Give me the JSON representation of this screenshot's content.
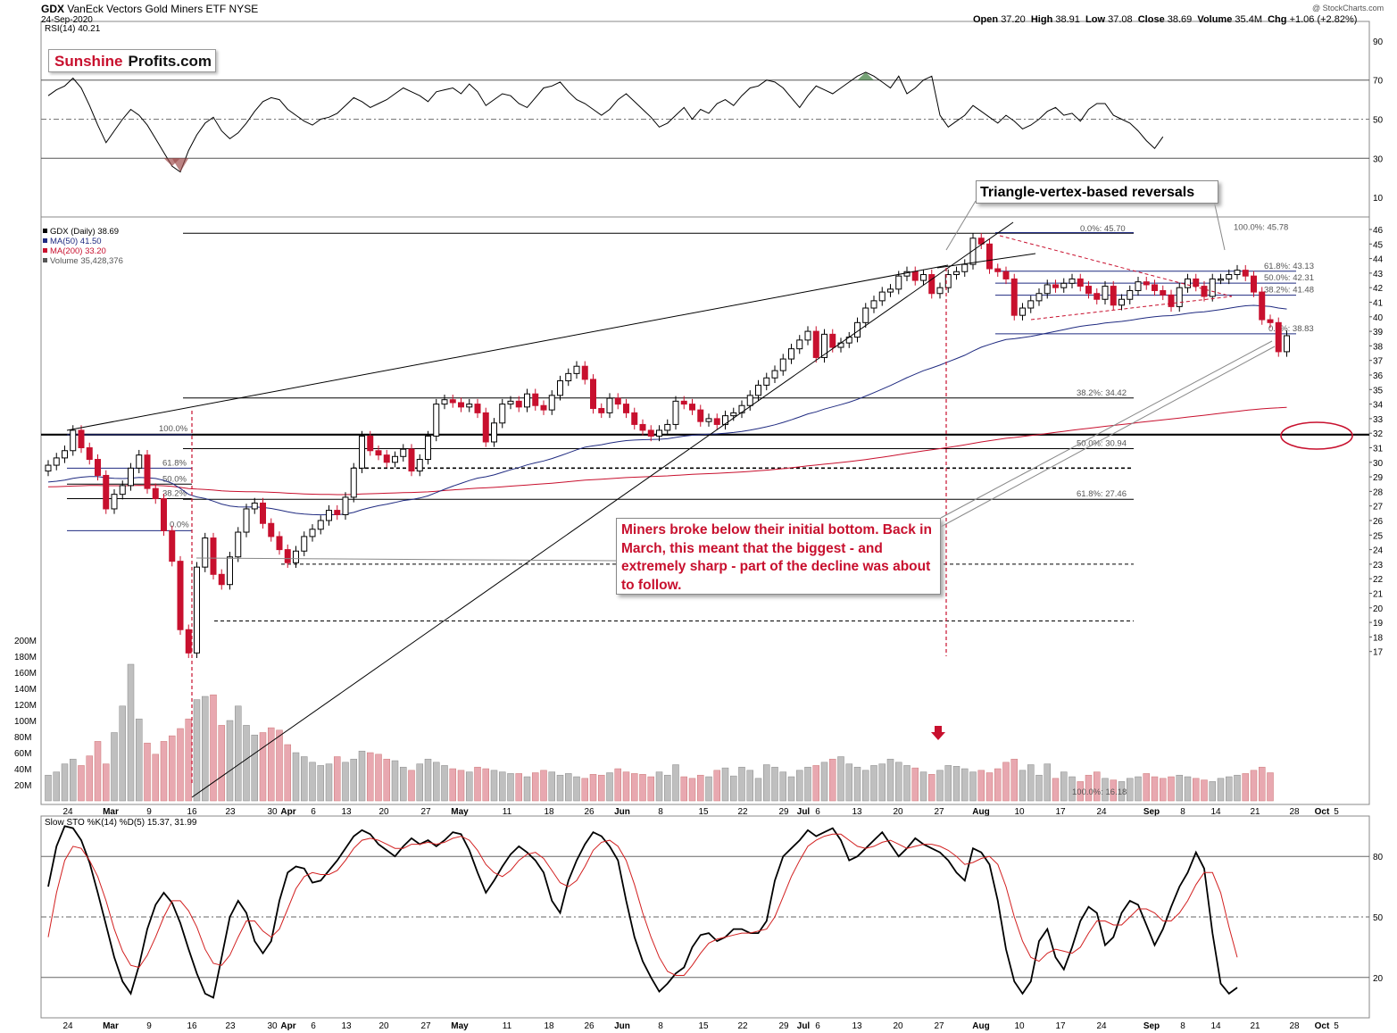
{
  "header": {
    "symbol": "GDX",
    "name": "VanEck Vectors Gold Miners ETF",
    "exchange": "NYSE",
    "date": "24-Sep-2020",
    "open_label": "Open",
    "open": "37.20",
    "high_label": "High",
    "high": "38.91",
    "low_label": "Low",
    "low": "37.08",
    "close_label": "Close",
    "close": "38.69",
    "volume_label": "Volume",
    "volume": "35.4M",
    "chg_label": "Chg",
    "chg": "+1.06 (+2.82%)",
    "watermark": "@ StockCharts.com"
  },
  "brand": {
    "part1": "Sunshine",
    "part2": "Profits.com"
  },
  "annotations": {
    "reversals": "Triangle-vertex-based reversals",
    "miners_text": "Miners broke below their initial bottom. Back in March, this meant that the biggest - and extremely sharp -  part of the decline was about to follow."
  },
  "chart_data": [
    {
      "type": "line",
      "panel": "rsi",
      "legend": "RSI(14) 40.21",
      "ylim": [
        0,
        100
      ],
      "ticks": [
        "90",
        "70",
        "50",
        "30",
        "10"
      ],
      "reference_lines": [
        70,
        50,
        30
      ],
      "values": [
        62,
        65,
        67,
        71,
        66,
        57,
        47,
        38,
        44,
        50,
        55,
        52,
        47,
        40,
        33,
        26,
        23,
        34,
        42,
        48,
        51,
        44,
        40,
        43,
        48,
        54,
        59,
        61,
        60,
        55,
        52,
        49,
        47,
        50,
        51,
        53,
        57,
        61,
        59,
        56,
        58,
        60,
        63,
        66,
        64,
        62,
        59,
        64,
        65,
        66,
        63,
        68,
        64,
        57,
        60,
        63,
        62,
        58,
        56,
        61,
        66,
        67,
        69,
        64,
        60,
        58,
        55,
        52,
        55,
        60,
        63,
        59,
        55,
        51,
        46,
        48,
        52,
        56,
        50,
        55,
        53,
        58,
        60,
        57,
        62,
        66,
        67,
        70,
        69,
        66,
        61,
        56,
        62,
        67,
        65,
        63,
        66,
        69,
        72,
        74,
        72,
        69,
        66,
        72,
        63,
        66,
        70,
        72,
        52,
        46,
        49,
        52,
        57,
        54,
        51,
        48,
        52,
        49,
        45,
        47,
        50,
        54,
        56,
        52,
        53,
        49,
        55,
        58,
        58,
        52,
        50,
        48,
        44,
        39,
        35,
        41
      ]
    },
    {
      "type": "candlestick",
      "panel": "price",
      "legend": [
        "GDX (Daily) 38.69",
        "MA(50) 41.50",
        "MA(200) 33.20",
        "Volume 35,428,376"
      ],
      "ylim": [
        15,
        46.5
      ],
      "ticks": [
        "46",
        "45",
        "44",
        "43",
        "42",
        "41",
        "40",
        "39",
        "38",
        "37",
        "36",
        "35",
        "34",
        "33",
        "32",
        "31",
        "30",
        "29",
        "28",
        "27",
        "26",
        "25",
        "24",
        "23",
        "22",
        "21",
        "20",
        "19",
        "18",
        "17"
      ],
      "x_labels": [
        "24",
        "Mar",
        "9",
        "16",
        "23",
        "30",
        "Apr",
        "6",
        "13",
        "20",
        "27",
        "May",
        "11",
        "18",
        "26",
        "Jun",
        "8",
        "15",
        "22",
        "29",
        "Jul",
        "6",
        "13",
        "20",
        "27",
        "Aug",
        "10",
        "17",
        "24",
        "Sep",
        "8",
        "14",
        "21",
        "28",
        "Oct",
        "5"
      ],
      "close": [
        29.8,
        30.3,
        30.8,
        32.2,
        31.0,
        30.2,
        29.1,
        26.8,
        27.8,
        28.4,
        29.6,
        30.5,
        28.2,
        27.5,
        25.3,
        23.2,
        18.5,
        16.9,
        22.8,
        24.8,
        22.3,
        21.6,
        23.5,
        25.2,
        26.8,
        27.2,
        25.8,
        24.9,
        24.0,
        23.1,
        23.9,
        24.9,
        25.4,
        26.0,
        26.7,
        26.4,
        27.6,
        29.6,
        31.8,
        30.8,
        30.5,
        30.0,
        30.4,
        30.9,
        29.4,
        30.2,
        31.8,
        34.0,
        34.3,
        34.1,
        33.8,
        34.0,
        33.4,
        31.4,
        32.7,
        34.0,
        34.2,
        33.8,
        34.7,
        33.9,
        33.6,
        34.6,
        35.6,
        36.1,
        36.6,
        35.7,
        33.7,
        33.4,
        34.4,
        34.0,
        33.4,
        32.6,
        32.2,
        31.8,
        32.2,
        32.6,
        34.2,
        34.0,
        33.6,
        32.8,
        33.0,
        32.6,
        33.2,
        33.4,
        33.9,
        34.6,
        35.3,
        35.8,
        36.3,
        37.1,
        37.8,
        38.4,
        39.0,
        37.2,
        38.8,
        37.9,
        38.2,
        38.6,
        39.6,
        40.6,
        41.1,
        41.7,
        41.9,
        42.8,
        43.1,
        42.5,
        42.9,
        41.6,
        42.0,
        42.9,
        43.1,
        43.6,
        45.4,
        45.0,
        43.3,
        43.1,
        42.6,
        40.1,
        40.6,
        41.1,
        41.6,
        42.2,
        42.0,
        42.3,
        42.6,
        42.1,
        41.6,
        41.2,
        42.1,
        40.8,
        41.2,
        41.8,
        42.4,
        42.2,
        41.8,
        41.5,
        40.7,
        42.0,
        42.6,
        42.1,
        41.4,
        42.6,
        42.6,
        42.9,
        43.2,
        42.8,
        41.7,
        39.8,
        39.6,
        37.6,
        38.7
      ],
      "volume_m": [
        32,
        36,
        46,
        52,
        44,
        56,
        74,
        46,
        85,
        118,
        170,
        102,
        72,
        58,
        74,
        81,
        90,
        102,
        126,
        130,
        132,
        94,
        100,
        118,
        94,
        82,
        85,
        91,
        88,
        70,
        60,
        55,
        48,
        44,
        46,
        55,
        48,
        52,
        62,
        60,
        58,
        52,
        50,
        42,
        38,
        46,
        52,
        48,
        44,
        40,
        38,
        36,
        42,
        40,
        38,
        36,
        34,
        34,
        30,
        35,
        38,
        36,
        32,
        34,
        30,
        28,
        33,
        32,
        35,
        40,
        36,
        34,
        33,
        30,
        36,
        32,
        45,
        30,
        28,
        32,
        30,
        38,
        41,
        31,
        42,
        38,
        28,
        45,
        42,
        36,
        30,
        38,
        42,
        44,
        48,
        52,
        55,
        46,
        42,
        38,
        44,
        46,
        52,
        48,
        44,
        41,
        36,
        33,
        38,
        44,
        43,
        40,
        36,
        38,
        35,
        40,
        48,
        52,
        38,
        45,
        32,
        46,
        28,
        36,
        30,
        24,
        32,
        36,
        28,
        26,
        24,
        28,
        30,
        34,
        30,
        28,
        30,
        32,
        30,
        28,
        26,
        24,
        28,
        30,
        32,
        34,
        38,
        42,
        35
      ],
      "levels": [
        {
          "value": 45.7,
          "label": "0.0%: 45.70"
        },
        {
          "value": 45.78,
          "label": "100.0%: 45.78"
        },
        {
          "value": 43.13,
          "label": "61.8%: 43.13"
        },
        {
          "value": 42.31,
          "label": "50.0%: 42.31"
        },
        {
          "value": 41.48,
          "label": "38.2%: 41.48"
        },
        {
          "value": 38.83,
          "label": "0.0%: 38.83"
        },
        {
          "value": 34.42,
          "label": "38.2%: 34.42"
        },
        {
          "value": 30.94,
          "label": "50.0%: 30.94"
        },
        {
          "value": 27.46,
          "label": "61.8%: 27.46"
        },
        {
          "value": 16.18,
          "label": "100.0%: 16.18"
        },
        {
          "value": 31.9,
          "label": "100.0%"
        },
        {
          "value": 28.3,
          "label": "61.8%"
        },
        {
          "value": 27.9,
          "label": "50.0%"
        },
        {
          "value": 27.5,
          "label": "38.2%"
        },
        {
          "value": 25.3,
          "label": "0.0%"
        }
      ],
      "volume_ticks": [
        "200M",
        "180M",
        "160M",
        "140M",
        "120M",
        "100M",
        "80M",
        "60M",
        "40M",
        "20M"
      ]
    },
    {
      "type": "line",
      "panel": "stochastic",
      "legend": "Slow STO %K(14) %D(5) 15.37, 31.99",
      "ylim": [
        0,
        100
      ],
      "ticks": [
        "80",
        "50",
        "20"
      ],
      "reference_lines": [
        80,
        50,
        20
      ],
      "series": [
        {
          "name": "%K",
          "values": [
            65,
            85,
            95,
            94,
            88,
            77,
            62,
            46,
            30,
            18,
            12,
            26,
            44,
            56,
            62,
            57,
            47,
            34,
            22,
            12,
            10,
            30,
            50,
            58,
            52,
            38,
            32,
            38,
            58,
            72,
            75,
            74,
            67,
            68,
            73,
            78,
            84,
            90,
            93,
            91,
            86,
            83,
            80,
            85,
            89,
            86,
            88,
            85,
            88,
            92,
            91,
            83,
            72,
            62,
            68,
            75,
            81,
            85,
            82,
            78,
            72,
            58,
            52,
            68,
            78,
            86,
            92,
            90,
            85,
            78,
            58,
            40,
            28,
            20,
            13,
            17,
            22,
            25,
            35,
            41,
            42,
            38,
            40,
            44,
            44,
            42,
            42,
            48,
            68,
            80,
            84,
            88,
            93,
            90,
            92,
            94,
            88,
            78,
            80,
            84,
            88,
            92,
            86,
            80,
            84,
            89,
            86,
            84,
            82,
            78,
            72,
            68,
            84,
            82,
            76,
            58,
            34,
            18,
            12,
            18,
            38,
            44,
            30,
            24,
            35,
            48,
            55,
            52,
            36,
            40,
            52,
            58,
            56,
            46,
            36,
            44,
            55,
            65,
            72,
            82,
            74,
            42,
            17,
            12,
            15
          ]
        },
        {
          "name": "%D",
          "values": [
            40,
            62,
            78,
            85,
            84,
            78,
            70,
            58,
            44,
            33,
            26,
            25,
            31,
            40,
            50,
            58,
            58,
            53,
            45,
            34,
            27,
            26,
            31,
            40,
            48,
            48,
            43,
            40,
            44,
            54,
            64,
            70,
            72,
            71,
            71,
            73,
            78,
            84,
            88,
            89,
            88,
            86,
            84,
            84,
            86,
            86,
            87,
            86,
            87,
            89,
            90,
            88,
            83,
            76,
            72,
            70,
            73,
            78,
            81,
            82,
            79,
            73,
            67,
            65,
            68,
            75,
            83,
            87,
            88,
            85,
            78,
            66,
            52,
            40,
            30,
            23,
            21,
            21,
            26,
            32,
            37,
            39,
            40,
            41,
            42,
            42,
            43,
            44,
            50,
            60,
            70,
            78,
            85,
            88,
            90,
            91,
            91,
            88,
            85,
            84,
            85,
            87,
            88,
            86,
            84,
            85,
            86,
            86,
            85,
            83,
            80,
            76,
            77,
            79,
            80,
            76,
            65,
            50,
            38,
            30,
            28,
            32,
            34,
            33,
            32,
            35,
            42,
            48,
            48,
            46,
            46,
            50,
            54,
            54,
            52,
            48,
            48,
            52,
            58,
            66,
            72,
            72,
            62,
            45,
            30
          ]
        }
      ]
    }
  ]
}
